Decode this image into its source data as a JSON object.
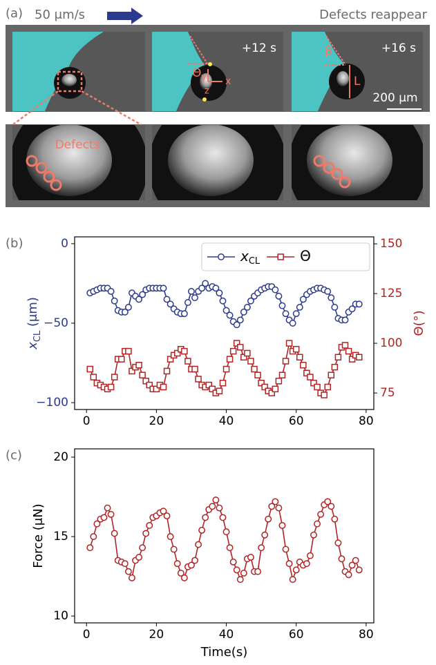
{
  "panel_a": {
    "label": "(a)",
    "speed": "50 μm/s",
    "right_note": "Defects reappear",
    "time_labels": [
      "+12 s",
      "+16 s"
    ],
    "scale_bar": "200 μm",
    "defects": "Defects",
    "symbols": [
      "Θ",
      "y",
      "x",
      "z",
      "β",
      "L"
    ]
  },
  "chart_data": [
    {
      "type": "line",
      "label": "(b)",
      "ylabel": "xCL (μm)",
      "y2label": "Θ(°)",
      "legend": "upper right",
      "x": [
        1,
        2,
        3,
        4,
        5,
        6,
        7,
        8,
        9,
        10,
        11,
        12,
        13,
        14,
        15,
        16,
        17,
        18,
        19,
        20,
        21,
        22,
        23,
        24,
        25,
        26,
        27,
        28,
        29,
        30,
        31,
        32,
        33,
        34,
        35,
        36,
        37,
        38,
        39,
        40,
        41,
        42,
        43,
        44,
        45,
        46,
        47,
        48,
        49,
        50,
        51,
        52,
        53,
        54,
        55,
        56,
        57,
        58,
        59,
        60,
        61,
        62,
        63,
        64,
        65,
        66,
        67,
        68,
        69,
        70,
        71,
        72,
        73,
        74,
        75,
        76,
        77,
        78
      ],
      "xlim": [
        -3.4,
        82.2
      ],
      "xticks": [
        0,
        20,
        40,
        60,
        80
      ],
      "ylim": [
        -104.3,
        4.3
      ],
      "yticks": [
        0,
        {
          "value": -50,
          "label": "−50"
        },
        {
          "value": -100,
          "label": "−100"
        }
      ],
      "y2lim": [
        66.7,
        153.5
      ],
      "y2ticks": [
        75,
        100,
        125,
        150
      ],
      "series": [
        {
          "name": "xCL",
          "color": "#2b3a8f",
          "marker": "circle",
          "values": [
            -31,
            -30,
            -29,
            -28,
            -28,
            -28,
            -30,
            -36,
            -42,
            -43,
            -43,
            -40,
            -31,
            -33,
            -35,
            -32,
            -29,
            -28,
            -28,
            -28,
            -28,
            -28,
            -35,
            -38,
            -41,
            -43,
            -44,
            -44,
            -37,
            -30,
            -34,
            -30,
            -28,
            -25,
            -28,
            -27,
            -28,
            -31,
            -36,
            -42,
            -45,
            -49,
            -51,
            -48,
            -43,
            -40,
            -36,
            -33,
            -31,
            -29,
            -28,
            -27,
            -27,
            -29,
            -33,
            -39,
            -44,
            -48,
            -50,
            -44,
            -40,
            -35,
            -32,
            -30,
            -29,
            -28,
            -28,
            -29,
            -30,
            -34,
            -40,
            -47,
            -48,
            -48,
            -43,
            -41,
            -38,
            -38
          ]
        },
        {
          "name": "Θ",
          "color": "#b22222",
          "marker": "square",
          "axis": "y2",
          "values": [
            87,
            83,
            80,
            79,
            78,
            77,
            78,
            83,
            92,
            92,
            96,
            96,
            86,
            88,
            89,
            84,
            81,
            79,
            77,
            77,
            79,
            78,
            86,
            92,
            94,
            95,
            97,
            96,
            91,
            87,
            87,
            82,
            79,
            78,
            79,
            77,
            75,
            76,
            80,
            87,
            92,
            96,
            100,
            98,
            93,
            95,
            91,
            87,
            84,
            80,
            78,
            76,
            75,
            77,
            81,
            84,
            91,
            100,
            96,
            97,
            93,
            89,
            85,
            83,
            80,
            78,
            75,
            74,
            78,
            84,
            88,
            93,
            98,
            99,
            96,
            92,
            94,
            93
          ]
        }
      ]
    },
    {
      "type": "line",
      "label": "(c)",
      "ylabel": "Force (μN)",
      "xlabel": "Time(s)",
      "x": [
        1,
        2,
        3,
        4,
        5,
        6,
        7,
        8,
        9,
        10,
        11,
        12,
        13,
        14,
        15,
        16,
        17,
        18,
        19,
        20,
        21,
        22,
        23,
        24,
        25,
        26,
        27,
        28,
        29,
        30,
        31,
        32,
        33,
        34,
        35,
        36,
        37,
        38,
        39,
        40,
        41,
        42,
        43,
        44,
        45,
        46,
        47,
        48,
        49,
        50,
        51,
        52,
        53,
        54,
        55,
        56,
        57,
        58,
        59,
        60,
        61,
        62,
        63,
        64,
        65,
        66,
        67,
        68,
        69,
        70,
        71,
        72,
        73,
        74,
        75,
        76,
        77,
        78
      ],
      "xlim": [
        -3.4,
        82.2
      ],
      "xticks": [
        0,
        20,
        40,
        60,
        80
      ],
      "ylim": [
        9.57,
        20.52
      ],
      "yticks": [
        10,
        15,
        20
      ],
      "series": [
        {
          "color": "#b22222",
          "marker": "circle",
          "values": [
            14.3,
            15,
            15.8,
            16.1,
            16.2,
            16.8,
            16.4,
            15.2,
            13.5,
            13.4,
            13.3,
            12.8,
            12.4,
            13.5,
            13.7,
            14.3,
            15.2,
            15.7,
            16.2,
            16.3,
            16.5,
            16.6,
            16.3,
            15,
            14.2,
            13.3,
            12.7,
            12.4,
            13.1,
            13.2,
            13.5,
            14.5,
            15.4,
            16.2,
            16.7,
            16.9,
            17.3,
            16.8,
            16.2,
            15.3,
            14.3,
            13.4,
            12.9,
            12.3,
            12.7,
            13.6,
            13.7,
            12.8,
            12.8,
            14.3,
            15.1,
            16.1,
            16.9,
            17.2,
            16.8,
            15.7,
            14.2,
            13.3,
            12.3,
            12.9,
            13.4,
            13.2,
            13.3,
            13.8,
            15.1,
            15.8,
            16.4,
            17,
            17.2,
            16.9,
            16.1,
            14.6,
            13.6,
            12.8,
            12.6,
            13.2,
            13.5,
            12.9
          ]
        }
      ]
    }
  ]
}
